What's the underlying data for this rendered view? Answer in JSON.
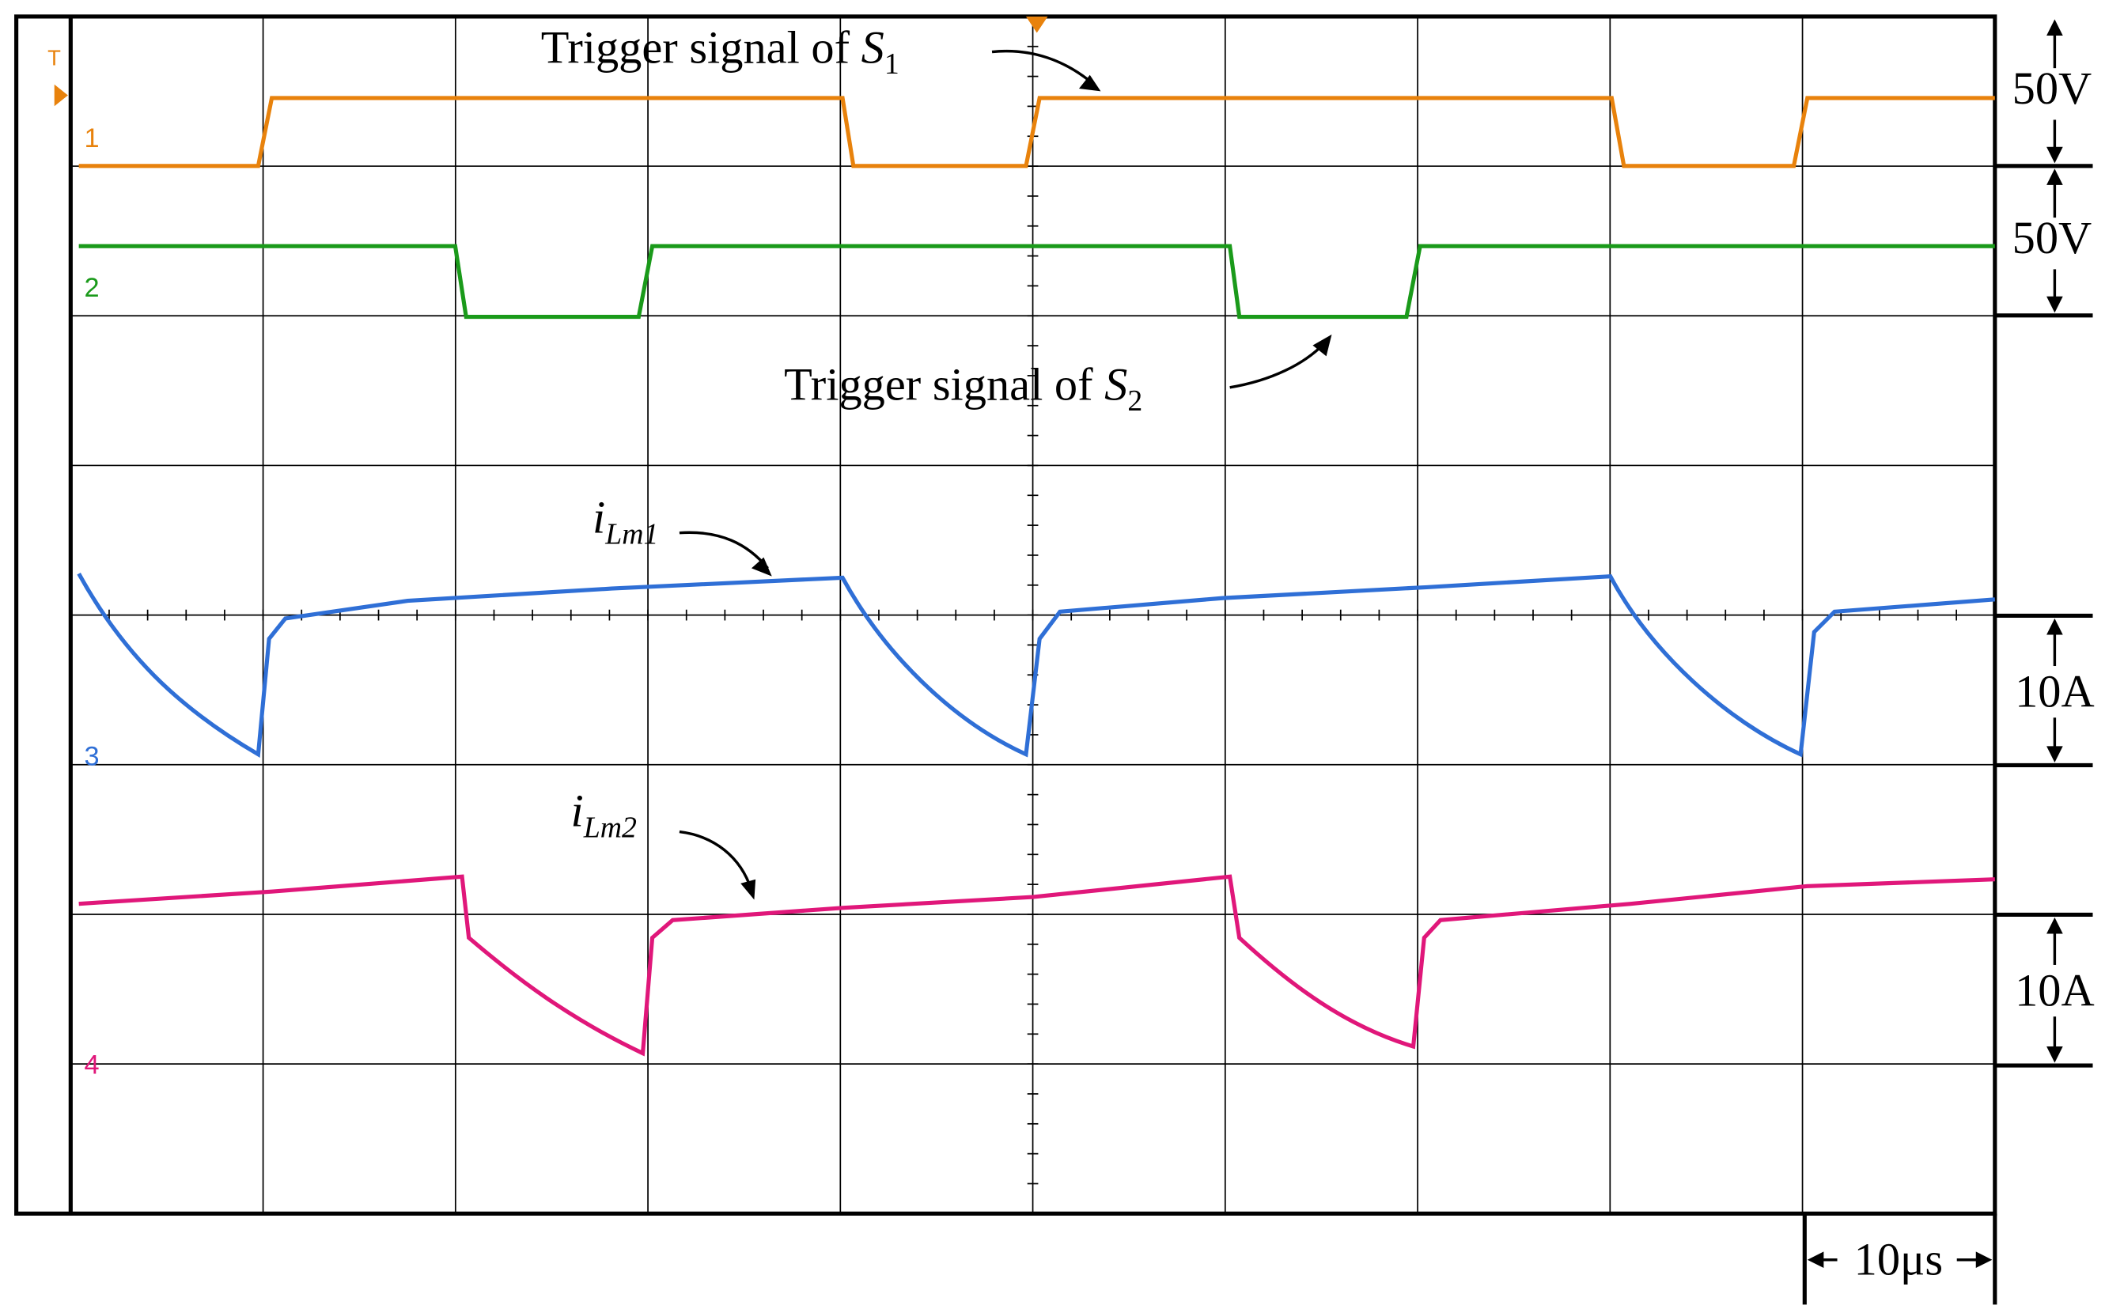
{
  "annotations": [
    {
      "text": "Trigger signal of ",
      "var": "S",
      "sub": "1"
    },
    {
      "text": "Trigger signal of ",
      "var": "S",
      "sub": "2"
    },
    {
      "var": "i",
      "sub": "Lm1"
    },
    {
      "var": "i",
      "sub": "Lm2"
    }
  ],
  "scales": [
    "50V",
    "50V",
    "10A",
    "10A",
    "10μs"
  ],
  "channels": [
    "1",
    "2",
    "3",
    "4"
  ],
  "trigger": "T"
}
